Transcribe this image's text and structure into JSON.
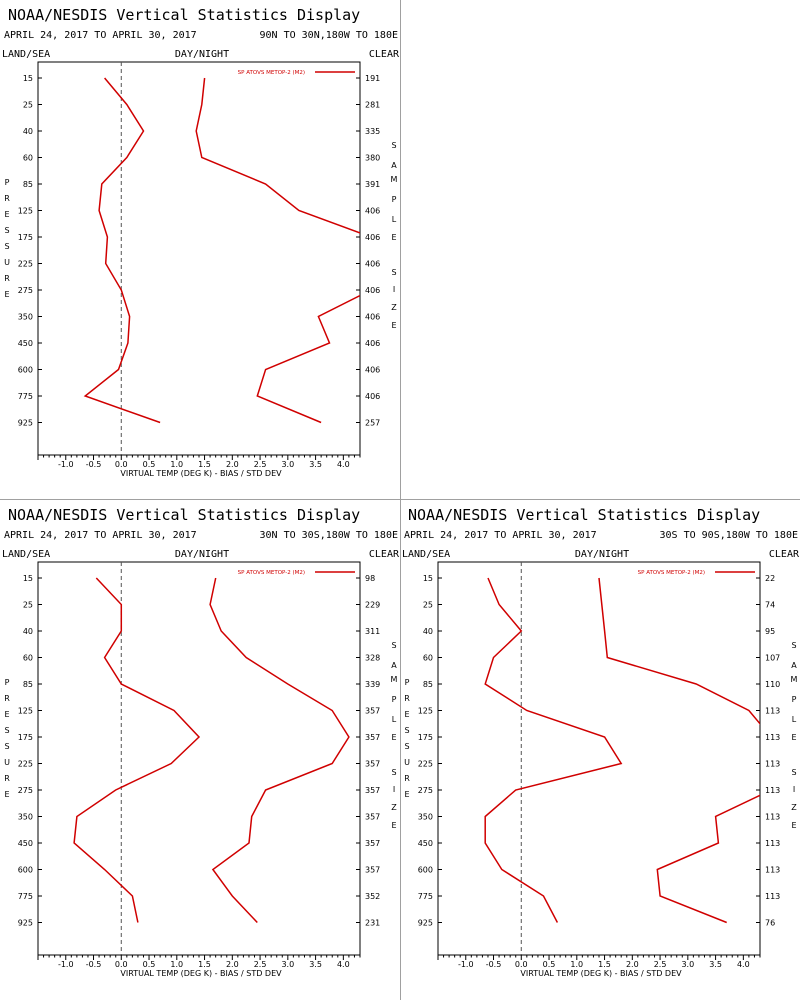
{
  "colors": {
    "series": "#d00000",
    "axis": "#000000",
    "zero_line": "#555555",
    "divider": "#a0a0a0"
  },
  "chart_data": [
    {
      "type": "line",
      "title": "NOAA/NESDIS Vertical Statistics Display",
      "date_range": "APRIL 24, 2017 TO APRIL 30, 2017",
      "region": "90N TO 30N,180W TO 180E",
      "left_label": "LAND/SEA",
      "center_label": "DAY/NIGHT",
      "right_label": "CLEAR",
      "ylabel": "PRESSURE",
      "right_axis_label": "SAMPLE SIZE",
      "xlabel": "VIRTUAL TEMP (DEG K) - BIAS / STD DEV",
      "xlim": [
        -1.5,
        4.3
      ],
      "x_ticks": [
        "-1.0",
        "-0.5",
        "0.0",
        "0.5",
        "1.0",
        "1.5",
        "2.0",
        "2.5",
        "3.0",
        "3.5",
        "4.0"
      ],
      "pressure_levels": [
        "15",
        "25",
        "40",
        "60",
        "85",
        "125",
        "175",
        "225",
        "275",
        "350",
        "450",
        "600",
        "775",
        "925"
      ],
      "sample_size": [
        "191",
        "281",
        "335",
        "380",
        "391",
        "406",
        "406",
        "406",
        "406",
        "406",
        "406",
        "406",
        "406",
        "257"
      ],
      "legend": "SP ATOVS METOP-2 (M2)",
      "series": [
        {
          "name": "SP ATOVS METOP-2 (M2)",
          "values": [
            -0.3,
            0.1,
            0.4,
            0.1,
            -0.35,
            -0.4,
            -0.25,
            -0.28,
            0.0,
            0.15,
            0.12,
            -0.05,
            -0.65,
            0.7
          ]
        },
        {
          "name": "SP ATOVS METOP-2 (M2)",
          "values": [
            1.5,
            1.45,
            1.35,
            1.45,
            2.6,
            3.2,
            4.5,
            4.5,
            4.5,
            3.55,
            3.75,
            2.6,
            2.45,
            3.6
          ]
        }
      ]
    },
    {
      "type": "line",
      "title": "NOAA/NESDIS Vertical Statistics Display",
      "date_range": "APRIL 24, 2017 TO APRIL 30, 2017",
      "region": "30N TO 30S,180W TO 180E",
      "left_label": "LAND/SEA",
      "center_label": "DAY/NIGHT",
      "right_label": "CLEAR",
      "ylabel": "PRESSURE",
      "right_axis_label": "SAMPLE SIZE",
      "xlabel": "VIRTUAL TEMP (DEG K) - BIAS / STD DEV",
      "xlim": [
        -1.5,
        4.3
      ],
      "x_ticks": [
        "-1.0",
        "-0.5",
        "0.0",
        "0.5",
        "1.0",
        "1.5",
        "2.0",
        "2.5",
        "3.0",
        "3.5",
        "4.0"
      ],
      "pressure_levels": [
        "15",
        "25",
        "40",
        "60",
        "85",
        "125",
        "175",
        "225",
        "275",
        "350",
        "450",
        "600",
        "775",
        "925"
      ],
      "sample_size": [
        "98",
        "229",
        "311",
        "328",
        "339",
        "357",
        "357",
        "357",
        "357",
        "357",
        "357",
        "357",
        "352",
        "231"
      ],
      "legend": "SP ATOVS METOP-2 (M2)",
      "series": [
        {
          "name": "SP ATOVS METOP-2 (M2)",
          "values": [
            -0.45,
            0.0,
            0.0,
            -0.3,
            0.0,
            0.95,
            1.4,
            0.9,
            -0.1,
            -0.8,
            -0.85,
            -0.3,
            0.2,
            0.3
          ]
        },
        {
          "name": "SP ATOVS METOP-2 (M2)",
          "values": [
            1.7,
            1.6,
            1.8,
            2.25,
            3.0,
            3.8,
            4.1,
            3.8,
            2.6,
            2.35,
            2.3,
            1.65,
            2.0,
            2.45
          ]
        }
      ]
    },
    {
      "type": "line",
      "title": "NOAA/NESDIS Vertical Statistics Display",
      "date_range": "APRIL 24, 2017 TO APRIL 30, 2017",
      "region": "30S TO 90S,180W TO 180E",
      "left_label": "LAND/SEA",
      "center_label": "DAY/NIGHT",
      "right_label": "CLEAR",
      "ylabel": "PRESSURE",
      "right_axis_label": "SAMPLE SIZE",
      "xlabel": "VIRTUAL TEMP (DEG K) - BIAS / STD DEV",
      "xlim": [
        -1.5,
        4.3
      ],
      "x_ticks": [
        "-1.0",
        "-0.5",
        "0.0",
        "0.5",
        "1.0",
        "1.5",
        "2.0",
        "2.5",
        "3.0",
        "3.5",
        "4.0"
      ],
      "pressure_levels": [
        "15",
        "25",
        "40",
        "60",
        "85",
        "125",
        "175",
        "225",
        "275",
        "350",
        "450",
        "600",
        "775",
        "925"
      ],
      "sample_size": [
        "22",
        "74",
        "95",
        "107",
        "110",
        "113",
        "113",
        "113",
        "113",
        "113",
        "113",
        "113",
        "113",
        "76"
      ],
      "legend": "SP ATOVS METOP-2 (M2)",
      "series": [
        {
          "name": "SP ATOVS METOP-2 (M2)",
          "values": [
            -0.6,
            -0.4,
            0.0,
            -0.5,
            -0.65,
            0.1,
            1.5,
            1.8,
            -0.1,
            -0.65,
            -0.65,
            -0.35,
            0.4,
            0.65
          ]
        },
        {
          "name": "SP ATOVS METOP-2 (M2)",
          "values": [
            1.4,
            1.45,
            1.5,
            1.55,
            3.15,
            4.1,
            4.5,
            4.5,
            4.5,
            3.5,
            3.55,
            2.45,
            2.5,
            3.7
          ]
        }
      ]
    }
  ]
}
